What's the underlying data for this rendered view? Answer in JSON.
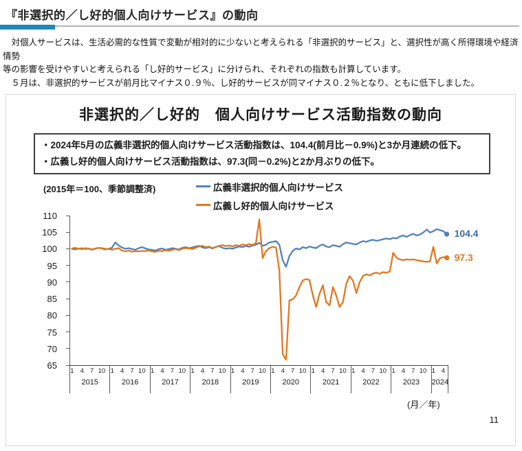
{
  "header": {
    "title": "『非選択的／し好的個人向けサービス』の動向"
  },
  "intro": {
    "lines": [
      "　対個人サービスは、生活必需的な性質で変動が相対的に少ないと考えられる「非選択的サービス」と、選択性が高く所得環境や経済情勢",
      "等の影響を受けやすいと考えられる「し好的サービス」に分けられ、それぞれの指数も計算しています。",
      "　５月は、非選択的サービスが前月比マイナス０.９％、し好的サービスが同マイナス０.２％となり、ともに低下しました。"
    ]
  },
  "panel": {
    "chart_title": "非選択的／し好的　個人向けサービス活動指数の動向",
    "annotation_bullets": [
      "・2024年5月の広義非選択的個人向けサービス活動指数は、104.4(前月比－0.9%)と3か月連続の低下。",
      "・広義し好的個人向けサービス活動指数は、97.3(同－0.2%)と2か月ぶりの低下。"
    ],
    "scale_note": "(2015年＝100、季節調整済)",
    "monthyear_note": "(月／年)",
    "page_number": "11"
  },
  "colors": {
    "header_accent_blue": "#1f86b8",
    "header_rule_gray": "#b3b3b3",
    "series_blue": "#4f81bd",
    "series_blue_label": "#3a6bad",
    "series_orange": "#e2771d"
  },
  "chart_data": {
    "type": "line",
    "title": "非選択的／し好的　個人向けサービス活動指数の動向",
    "subtitle": "(2015年＝100、季節調整済)",
    "xlabel": "(月／年)",
    "ylabel": "",
    "ylim": [
      65,
      110
    ],
    "ytick_step": 5,
    "grid": false,
    "legend_position": "top",
    "x_unit": "monthly",
    "years": [
      {
        "year": "2015",
        "months": 12
      },
      {
        "year": "2016",
        "months": 12
      },
      {
        "year": "2017",
        "months": 12
      },
      {
        "year": "2018",
        "months": 12
      },
      {
        "year": "2019",
        "months": 12
      },
      {
        "year": "2020",
        "months": 12
      },
      {
        "year": "2021",
        "months": 12
      },
      {
        "year": "2022",
        "months": 12
      },
      {
        "year": "2023",
        "months": 12
      },
      {
        "year": "2024",
        "months": 5
      }
    ],
    "month_ticks": [
      1,
      4,
      7,
      10
    ],
    "series": [
      {
        "name": "広義非選択的個人向けサービス",
        "color": "#4f81bd",
        "label_color": "#3a6bad",
        "end_label": "104.4",
        "end_value": 104.4,
        "values": [
          100.0,
          99.8,
          100.1,
          99.9,
          100.2,
          100.0,
          99.7,
          100.0,
          100.3,
          100.1,
          99.8,
          100.0,
          100.3,
          101.9,
          101.0,
          100.4,
          100.0,
          100.2,
          99.9,
          99.7,
          100.2,
          100.5,
          100.1,
          99.8,
          99.7,
          99.5,
          99.9,
          100.1,
          99.7,
          99.9,
          100.2,
          100.0,
          99.8,
          100.3,
          100.5,
          100.2,
          100.4,
          100.7,
          100.9,
          100.4,
          100.2,
          100.5,
          100.1,
          100.6,
          100.8,
          100.3,
          100.0,
          100.2,
          100.0,
          100.4,
          100.7,
          100.5,
          100.9,
          100.6,
          101.0,
          101.2,
          101.8,
          100.9,
          101.2,
          101.9,
          102.1,
          102.3,
          101.2,
          96.5,
          94.6,
          97.8,
          99.4,
          100.1,
          99.8,
          100.5,
          100.2,
          100.7,
          100.4,
          100.2,
          100.9,
          101.3,
          100.7,
          100.5,
          101.1,
          100.9,
          100.6,
          101.4,
          101.9,
          101.7,
          101.5,
          101.3,
          101.9,
          102.3,
          102.1,
          102.5,
          102.7,
          102.4,
          102.6,
          102.9,
          103.1,
          102.9,
          103.3,
          103.1,
          103.7,
          104.0,
          103.6,
          104.1,
          104.5,
          104.0,
          104.3,
          104.9,
          105.8,
          104.9,
          105.3,
          105.9,
          105.6,
          105.3,
          104.4
        ]
      },
      {
        "name": "広義し好的個人向けサービス",
        "color": "#e2771d",
        "label_color": "#e2771d",
        "end_label": "97.3",
        "end_value": 97.3,
        "values": [
          100.1,
          100.3,
          100.0,
          100.2,
          99.9,
          100.1,
          99.8,
          100.1,
          100.3,
          100.2,
          100.0,
          99.9,
          99.7,
          100.0,
          100.2,
          99.5,
          99.2,
          99.5,
          99.1,
          99.3,
          99.2,
          99.4,
          99.3,
          99.5,
          99.2,
          99.1,
          99.4,
          99.3,
          99.6,
          99.4,
          99.7,
          99.9,
          99.6,
          100.0,
          100.2,
          100.1,
          99.9,
          100.3,
          100.7,
          100.9,
          100.5,
          100.7,
          100.2,
          100.5,
          100.9,
          101.1,
          100.8,
          101.0,
          100.7,
          101.1,
          100.9,
          101.3,
          101.1,
          101.4,
          101.2,
          101.7,
          108.8,
          97.2,
          99.3,
          100.2,
          100.6,
          100.4,
          93.5,
          68.3,
          66.6,
          84.5,
          84.8,
          86.0,
          88.5,
          90.5,
          90.9,
          90.6,
          86.0,
          82.5,
          86.5,
          89.0,
          84.0,
          83.0,
          88.5,
          86.0,
          82.5,
          84.0,
          89.5,
          91.8,
          90.4,
          86.7,
          90.0,
          91.9,
          92.3,
          92.0,
          92.6,
          92.8,
          92.5,
          93.0,
          92.8,
          93.2,
          98.8,
          97.3,
          96.8,
          96.6,
          96.8,
          96.7,
          96.8,
          96.6,
          96.4,
          96.2,
          96.1,
          96.2,
          100.6,
          95.6,
          97.2,
          97.5,
          97.3
        ]
      }
    ]
  }
}
